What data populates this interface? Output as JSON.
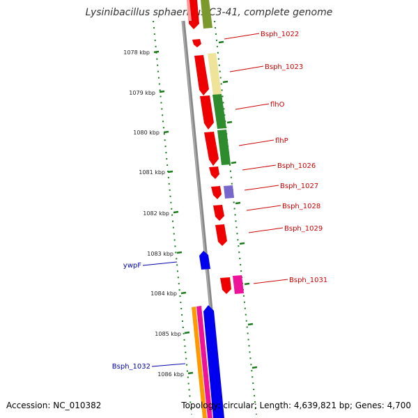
{
  "header": {
    "title": "Lysinibacillus sphaericus C3-41, complete genome"
  },
  "footer": {
    "accession": "Accession: NC_010382",
    "summary": "Topology: circular; Length: 4,639,821 bp; Genes: 4,700"
  },
  "colors": {
    "backbone": "#888888",
    "ticks": "#1a7a1a",
    "label_forward": "#cc0000",
    "label_reverse": "#0000aa"
  },
  "position_ticks": [
    {
      "label": "1078 kbp"
    },
    {
      "label": "1079 kbp"
    },
    {
      "label": "1080 kbp"
    },
    {
      "label": "1081 kbp"
    },
    {
      "label": "1082 kbp"
    },
    {
      "label": "1083 kbp"
    },
    {
      "label": "1084 kbp"
    },
    {
      "label": "1085 kbp"
    },
    {
      "label": "1086 kbp"
    }
  ],
  "gene_labels": [
    {
      "name": "Bsph_1022",
      "strand": "forward"
    },
    {
      "name": "Bsph_1023",
      "strand": "forward"
    },
    {
      "name": "flhO",
      "strand": "forward"
    },
    {
      "name": "flhP",
      "strand": "forward"
    },
    {
      "name": "Bsph_1026",
      "strand": "forward"
    },
    {
      "name": "Bsph_1027",
      "strand": "forward"
    },
    {
      "name": "Bsph_1028",
      "strand": "forward"
    },
    {
      "name": "Bsph_1029",
      "strand": "forward"
    },
    {
      "name": "Bsph_1031",
      "strand": "forward"
    },
    {
      "name": "ywpF",
      "strand": "reverse"
    },
    {
      "name": "Bsph_1032",
      "strand": "reverse"
    }
  ]
}
